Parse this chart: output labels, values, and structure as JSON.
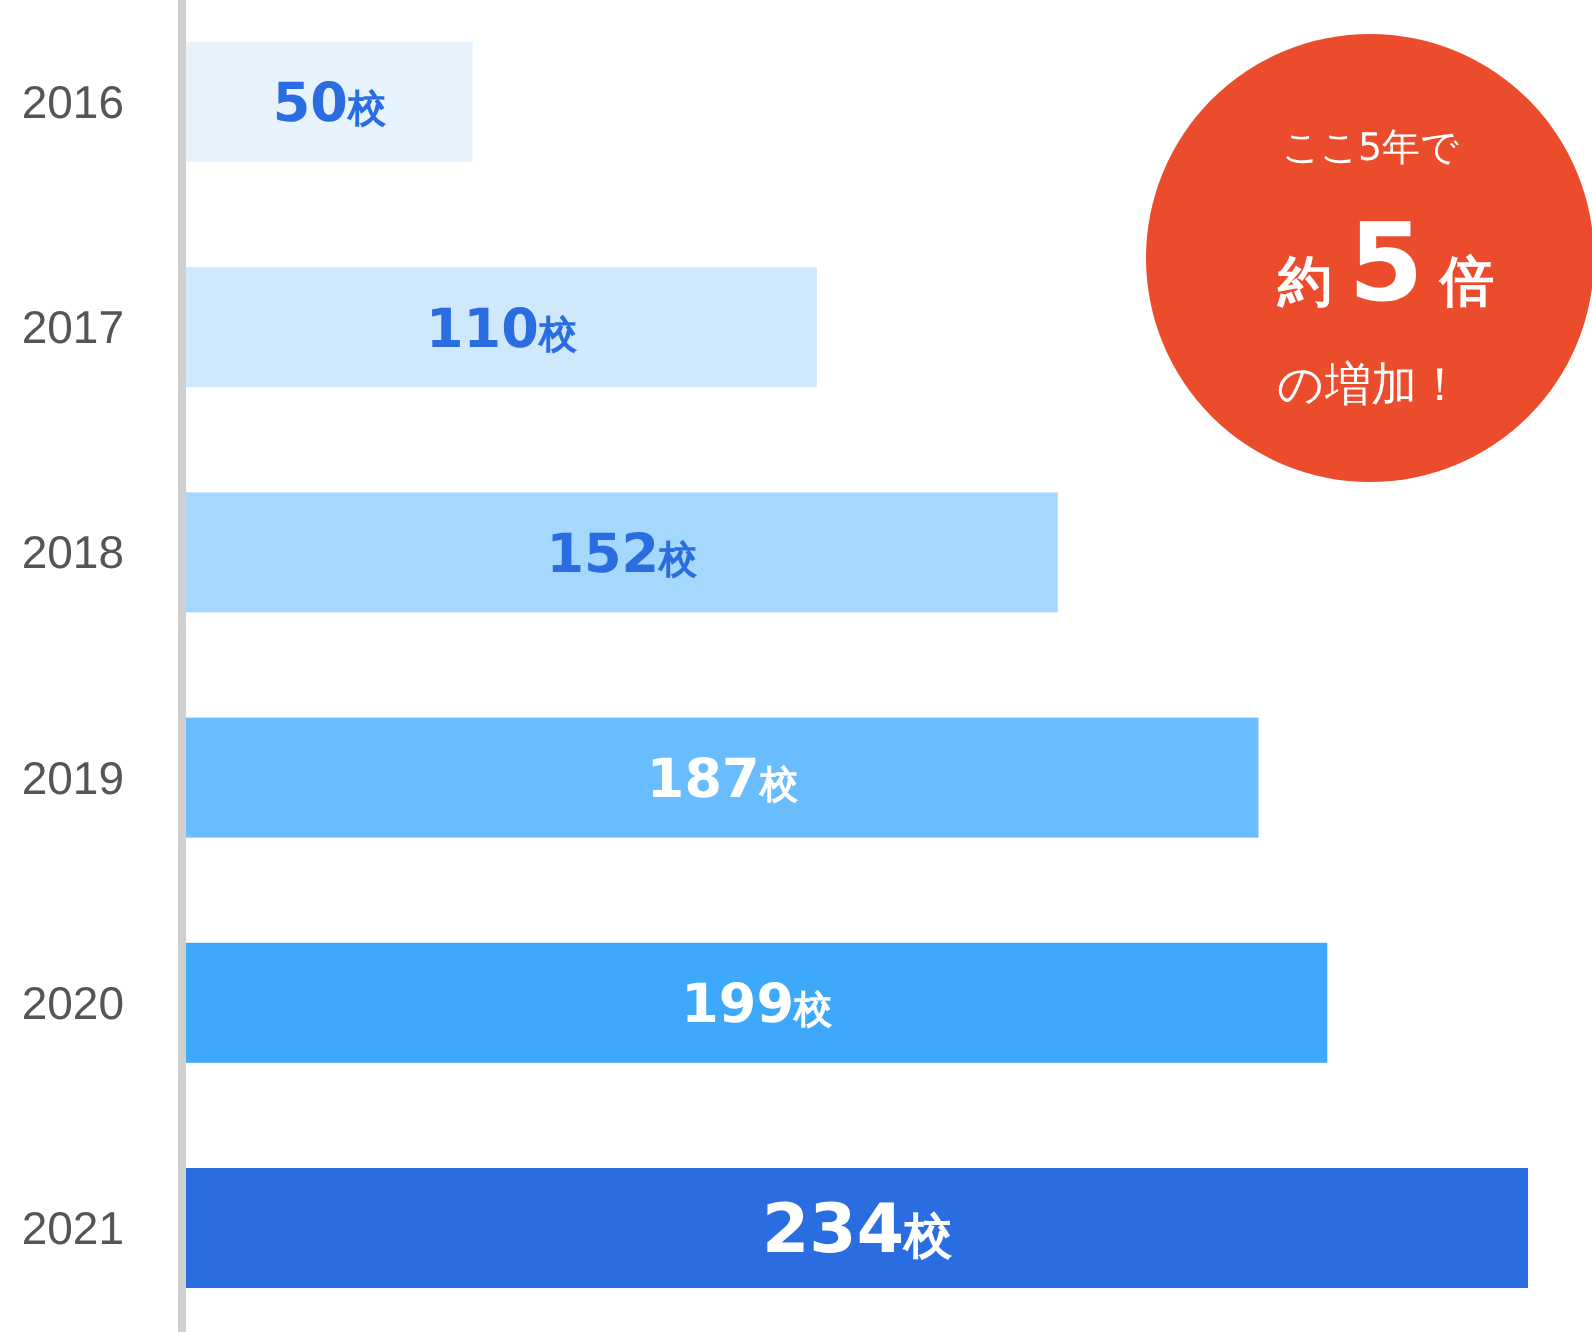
{
  "chart_data": {
    "type": "bar",
    "orientation": "horizontal",
    "categories": [
      "2016",
      "2017",
      "2018",
      "2019",
      "2020",
      "2021"
    ],
    "values": [
      50,
      110,
      152,
      187,
      199,
      234
    ],
    "colors": [
      "#e6f3fd",
      "#cfe8fc",
      "#a6d7fd",
      "#69bdfe",
      "#3ea8fb",
      "#2a6de0"
    ],
    "value_labels": [
      "50校",
      "110校",
      "152校",
      "187校",
      "199校",
      "234校"
    ],
    "annotations": [
      "ここ5年で",
      "約5倍",
      "の増加！"
    ]
  }
}
